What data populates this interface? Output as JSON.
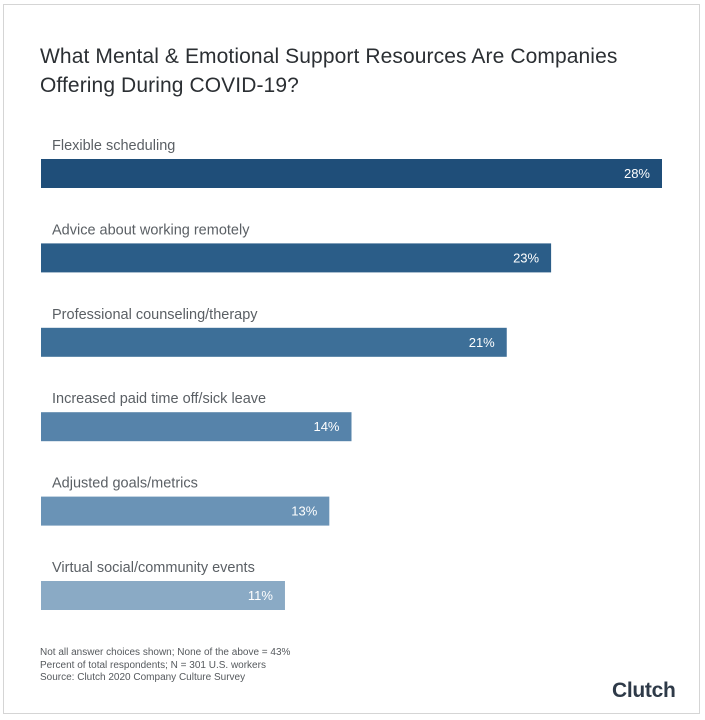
{
  "title": "What Mental & Emotional Support Resources Are Companies Offering During COVID-19?",
  "chart_data": {
    "type": "bar",
    "orientation": "horizontal",
    "title": "What Mental & Emotional Support Resources Are Companies Offering During COVID-19?",
    "categories": [
      "Flexible scheduling",
      "Advice about working remotely",
      "Professional counseling/therapy",
      "Increased paid time off/sick leave",
      "Adjusted goals/metrics",
      "Virtual social/community events"
    ],
    "values": [
      28,
      23,
      21,
      14,
      13,
      11
    ],
    "value_labels": [
      "28%",
      "23%",
      "21%",
      "14%",
      "13%",
      "11%"
    ],
    "unit": "%",
    "xlim": [
      0,
      28
    ],
    "grid": false,
    "legend": "none",
    "colors": [
      "#1f4e79",
      "#2b5d88",
      "#3d6f98",
      "#5683aa",
      "#6a93b6",
      "#8aaac5"
    ]
  },
  "notes": [
    "Not all answer choices shown; None of the above = 43%",
    "Percent of total respondents; N = 301 U.S. workers",
    "Source: Clutch 2020 Company Culture Survey"
  ],
  "logo_text": "Clutch"
}
